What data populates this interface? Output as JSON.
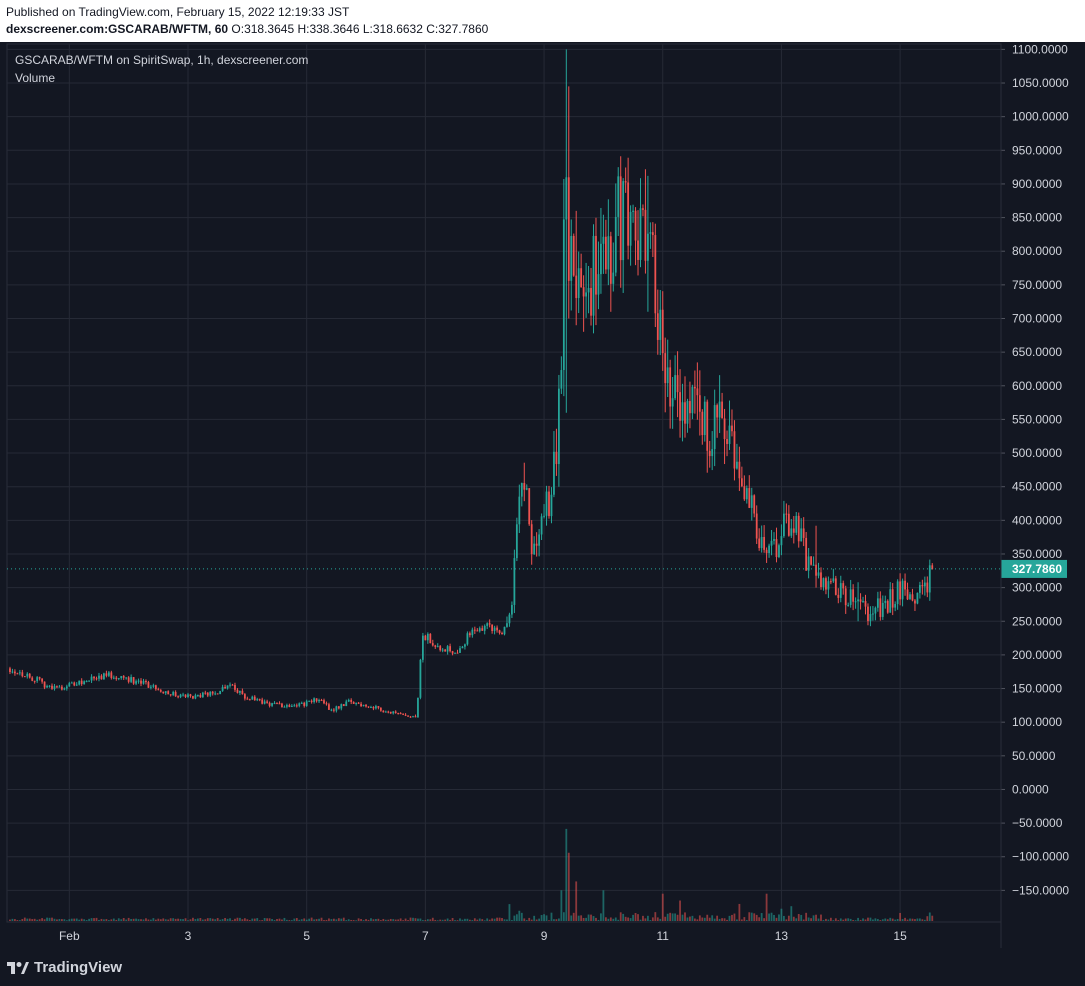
{
  "header": {
    "published": "Published on TradingView.com, February 15, 2022 12:19:33 JST",
    "symbol": "dexscreener.com:GSCARAB/WFTM, 60",
    "ohlc": "O:318.3645 H:338.3646 L:318.6632 C:327.7860"
  },
  "legend": {
    "title": "GSCARAB/WFTM on SpiritSwap, 1h, dexscreener.com",
    "volume": "Volume"
  },
  "footer": {
    "brand": "TradingView"
  },
  "colors": {
    "up": "#26a69a",
    "down": "#ef5350",
    "grid": "#262a36",
    "bg": "#131722",
    "last": "#26a69a"
  },
  "chart_data": {
    "type": "candlestick",
    "interval": "1h",
    "last_price": 327.786,
    "last_price_label": "327.7860",
    "ylim": [
      -197,
      1108
    ],
    "y_ticks": [
      1100,
      1050,
      1000,
      950,
      900,
      850,
      800,
      750,
      700,
      650,
      600,
      550,
      500,
      450,
      400,
      350,
      300,
      250,
      200,
      150,
      100,
      50,
      0,
      -50,
      -100,
      -150
    ],
    "y_tick_labels": [
      "1100.0000",
      "1050.0000",
      "1000.0000",
      "950.0000",
      "900.0000",
      "850.0000",
      "800.0000",
      "750.0000",
      "700.0000",
      "650.0000",
      "600.0000",
      "550.0000",
      "500.0000",
      "450.0000",
      "400.0000",
      "350.0000",
      "300.0000",
      "250.0000",
      "200.0000",
      "150.0000",
      "100.0000",
      "50.0000",
      "0.0000",
      "−50.0000",
      "−100.0000",
      "−150.0000"
    ],
    "x_ticks": [
      {
        "day": 1,
        "label": "Feb"
      },
      {
        "day": 3,
        "label": "3"
      },
      {
        "day": 5,
        "label": "5"
      },
      {
        "day": 7,
        "label": "7"
      },
      {
        "day": 9,
        "label": "9"
      },
      {
        "day": 11,
        "label": "11"
      },
      {
        "day": 13,
        "label": "13"
      },
      {
        "day": 15,
        "label": "15"
      }
    ],
    "x_range_days": [
      -0.05,
      16.7
    ],
    "price_path": [
      [
        0.0,
        180
      ],
      [
        0.4,
        165
      ],
      [
        0.7,
        150
      ],
      [
        1.0,
        155
      ],
      [
        1.3,
        162
      ],
      [
        1.6,
        170
      ],
      [
        1.9,
        168
      ],
      [
        2.2,
        158
      ],
      [
        2.5,
        150
      ],
      [
        2.8,
        140
      ],
      [
        3.1,
        138
      ],
      [
        3.5,
        145
      ],
      [
        3.7,
        160
      ],
      [
        3.9,
        140
      ],
      [
        4.2,
        130
      ],
      [
        4.6,
        125
      ],
      [
        5.0,
        128
      ],
      [
        5.2,
        135
      ],
      [
        5.4,
        118
      ],
      [
        5.7,
        130
      ],
      [
        6.0,
        125
      ],
      [
        6.3,
        118
      ],
      [
        6.55,
        110
      ],
      [
        6.85,
        105
      ],
      [
        6.95,
        230
      ],
      [
        7.2,
        215
      ],
      [
        7.5,
        205
      ],
      [
        7.8,
        235
      ],
      [
        8.05,
        245
      ],
      [
        8.3,
        230
      ],
      [
        8.45,
        280
      ],
      [
        8.55,
        420
      ],
      [
        8.65,
        480
      ],
      [
        8.8,
        360
      ],
      [
        8.95,
        400
      ],
      [
        9.1,
        430
      ],
      [
        9.25,
        560
      ],
      [
        9.35,
        850
      ],
      [
        9.5,
        760
      ],
      [
        9.65,
        700
      ],
      [
        9.85,
        760
      ],
      [
        10.0,
        800
      ],
      [
        10.2,
        840
      ],
      [
        10.4,
        860
      ],
      [
        10.55,
        760
      ],
      [
        10.7,
        840
      ],
      [
        10.85,
        780
      ],
      [
        10.95,
        680
      ],
      [
        11.1,
        620
      ],
      [
        11.3,
        560
      ],
      [
        11.5,
        560
      ],
      [
        11.7,
        540
      ],
      [
        11.85,
        520
      ],
      [
        11.95,
        560
      ],
      [
        12.1,
        540
      ],
      [
        12.3,
        440
      ],
      [
        12.5,
        420
      ],
      [
        12.65,
        370
      ],
      [
        12.8,
        350
      ],
      [
        13.0,
        380
      ],
      [
        13.1,
        400
      ],
      [
        13.3,
        380
      ],
      [
        13.5,
        320
      ],
      [
        13.7,
        300
      ],
      [
        13.9,
        300
      ],
      [
        14.1,
        290
      ],
      [
        14.3,
        270
      ],
      [
        14.5,
        262
      ],
      [
        14.75,
        275
      ],
      [
        15.0,
        300
      ],
      [
        15.2,
        285
      ],
      [
        15.4,
        295
      ],
      [
        15.55,
        327.786
      ]
    ],
    "spikes": [
      {
        "day": 9.38,
        "high": 1100,
        "low": 560
      },
      {
        "day": 9.42,
        "high": 1045,
        "low": 700
      },
      {
        "day": 9.55,
        "high": 860,
        "low": 690
      },
      {
        "day": 10.3,
        "high": 925,
        "low": 780
      },
      {
        "day": 10.75,
        "high": 912,
        "low": 710
      },
      {
        "day": 13.6,
        "high": 392,
        "low": 300
      },
      {
        "day": 14.3,
        "high": 308,
        "low": 250
      }
    ],
    "volume_peaks": [
      {
        "day": 9.38,
        "value": 135
      },
      {
        "day": 9.42,
        "value": 100
      },
      {
        "day": 9.3,
        "value": 45
      },
      {
        "day": 9.55,
        "value": 58
      },
      {
        "day": 10.0,
        "value": 45
      },
      {
        "day": 11.0,
        "value": 40
      },
      {
        "day": 12.75,
        "value": 40
      },
      {
        "day": 8.6,
        "value": 15
      },
      {
        "day": 11.3,
        "value": 30
      },
      {
        "day": 12.3,
        "value": 25
      },
      {
        "day": 13.0,
        "value": 18
      }
    ]
  }
}
